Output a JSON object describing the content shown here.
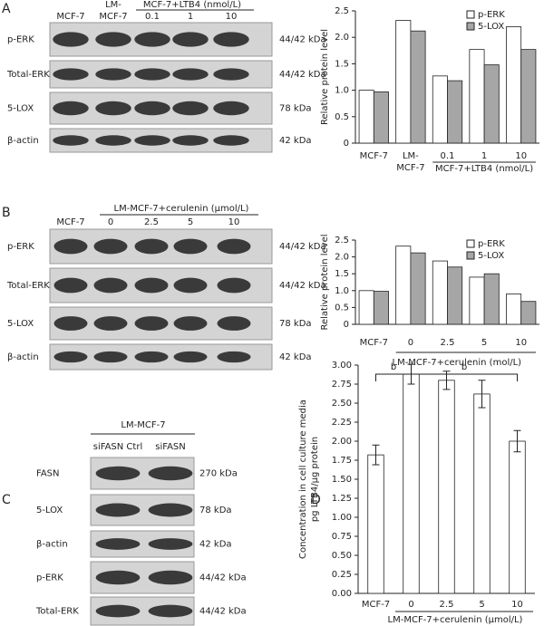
{
  "chart_data": [
    {
      "type": "bar",
      "panel": "",
      "ylabel": "Relative protein level",
      "categories": [
        "MCF-7",
        "LM-\nMCF-7",
        "0.1",
        "1",
        "10"
      ],
      "group_label": "MCF-7+LTB4 (nmol/L)",
      "series": [
        {
          "name": "p-ERK",
          "color": "#ffffff",
          "values": [
            1.0,
            2.32,
            1.27,
            1.77,
            2.2
          ]
        },
        {
          "name": "5-LOX",
          "color": "#a6a6a6",
          "values": [
            0.97,
            2.12,
            1.18,
            1.48,
            1.77
          ]
        }
      ],
      "ylim": [
        0,
        2.5
      ],
      "yticks": [
        0,
        0.5,
        {
          "value": 1,
          "label": "1.0"
        },
        1.5,
        {
          "value": 2,
          "label": "2.0"
        },
        2.5
      ],
      "legend": "upper right"
    },
    {
      "type": "bar",
      "panel": "",
      "ylabel": "Relative protein level",
      "categories": [
        "MCF-7",
        "0",
        "2.5",
        "5",
        "10"
      ],
      "group_label": "LM-MCF-7+cerulenin (mol/L)",
      "series": [
        {
          "name": "p-ERK",
          "color": "#ffffff",
          "values": [
            1.0,
            2.32,
            1.88,
            1.4,
            0.9
          ]
        },
        {
          "name": "5-LOX",
          "color": "#a6a6a6",
          "values": [
            0.98,
            2.12,
            1.7,
            1.5,
            0.68
          ]
        }
      ],
      "ylim": [
        0,
        2.5
      ],
      "yticks": [
        0,
        0.5,
        {
          "value": 1,
          "label": "1.0"
        },
        1.5,
        {
          "value": 2,
          "label": "2.0"
        },
        2.5
      ],
      "legend": "upper right"
    },
    {
      "type": "bar",
      "panel": "D",
      "ylabel": "Concentration in cell culture media\npg LTB4/μg protein",
      "categories": [
        "MCF-7",
        "0",
        "2.5",
        "5",
        "10"
      ],
      "group_label": "LM-MCF-7+cerulenin (μmol/L)",
      "series": [
        {
          "name": "",
          "color": "#ffffff",
          "values": [
            1.82,
            2.88,
            2.8,
            2.62,
            2.0
          ],
          "errors": [
            0.13,
            0.13,
            0.12,
            0.18,
            0.14
          ]
        }
      ],
      "annotations": [
        "b",
        "b"
      ],
      "ylim": [
        0,
        3
      ],
      "yticks": [
        {
          "value": 0,
          "label": "0.00"
        },
        0.25,
        {
          "value": 0.5,
          "label": "0.50"
        },
        0.75,
        {
          "value": 1,
          "label": "1.00"
        },
        1.25,
        {
          "value": 1.5,
          "label": "1.50"
        },
        1.75,
        {
          "value": 2,
          "label": "2.00"
        },
        2.25,
        {
          "value": 2.5,
          "label": "2.50"
        },
        2.75,
        {
          "value": 3,
          "label": "3.00"
        }
      ]
    }
  ],
  "blots": [
    {
      "panel": "A",
      "headers": [
        "MCF-7",
        "LM-\nMCF-7",
        "MCF-7+LTB4 (nmol/L)",
        "0.1",
        "1",
        "10"
      ],
      "rows": [
        {
          "label": "p-ERK",
          "kda": "44/42 kDa"
        },
        {
          "label": "Total-ERK",
          "kda": "44/42 kDa"
        },
        {
          "label": "5-LOX",
          "kda": "78 kDa"
        },
        {
          "label": "β-actin",
          "kda": "42 kDa"
        }
      ]
    },
    {
      "panel": "B",
      "headers": [
        "LM-MCF-7+cerulenin (μmol/L)",
        "MCF-7",
        "0",
        "2.5",
        "5",
        "10"
      ],
      "rows": [
        {
          "label": "p-ERK",
          "kda": "44/42 kDa"
        },
        {
          "label": "Total-ERK",
          "kda": "44/42 kDa"
        },
        {
          "label": "5-LOX",
          "kda": "78 kDa"
        },
        {
          "label": "β-actin",
          "kda": "42 kDa"
        }
      ]
    },
    {
      "panel": "C",
      "headers": [
        "LM-MCF-7",
        "siFASN Ctrl",
        "siFASN"
      ],
      "rows": [
        {
          "label": "FASN",
          "kda": "270 kDa"
        },
        {
          "label": "5-LOX",
          "kda": "78 kDa"
        },
        {
          "label": "β-actin",
          "kda": "42 kDa"
        },
        {
          "label": "p-ERK",
          "kda": "44/42 kDa"
        },
        {
          "label": "Total-ERK",
          "kda": "44/42 kDa"
        }
      ]
    }
  ]
}
